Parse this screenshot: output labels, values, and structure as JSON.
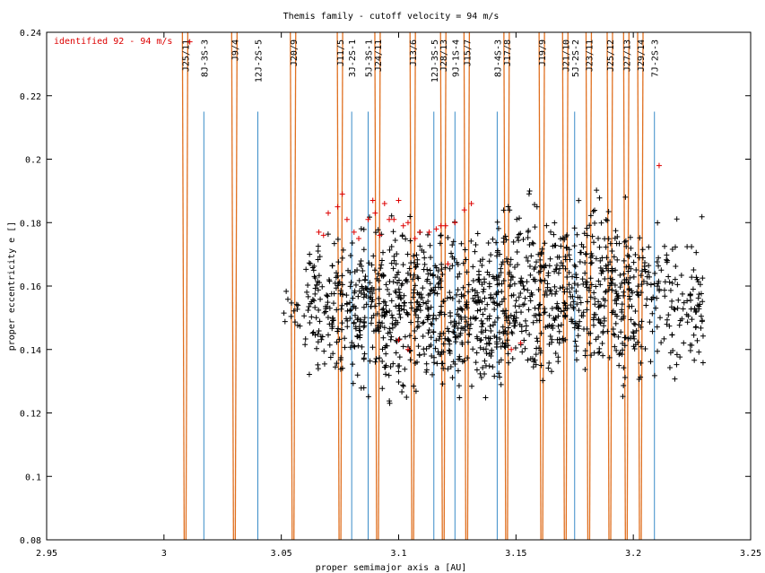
{
  "chart_data": {
    "type": "scatter",
    "title": "Themis family - cutoff velocity = 94 m/s",
    "xlabel": "proper semimajor axis a [AU]",
    "ylabel": "proper eccentricity e []",
    "xlim": [
      2.95,
      3.25
    ],
    "ylim": [
      0.08,
      0.24
    ],
    "xticks": [
      2.95,
      3,
      3.05,
      3.1,
      3.15,
      3.2,
      3.25
    ],
    "yticks": [
      0.08,
      0.1,
      0.12,
      0.14,
      0.16,
      0.18,
      0.2,
      0.22,
      0.24
    ],
    "xtick_labels": [
      "2.95",
      "3",
      "3.05",
      "3.1",
      "3.15",
      "3.2",
      "3.25"
    ],
    "ytick_labels": [
      "0.08",
      "0.1",
      "0.12",
      "0.14",
      "0.16",
      "0.18",
      "0.2",
      "0.22",
      "0.24"
    ],
    "grid": false,
    "legend": {
      "position": "top-left",
      "entries": [
        {
          "label": "identified 92 - 94 m/s",
          "color": "#dd0000"
        }
      ]
    },
    "colors": {
      "background_points": "#000000",
      "identified_points": "#dd0000",
      "resonance_boundary": "#e07020",
      "three_body_line": "#3a8cc8"
    },
    "resonances": [
      {
        "label": "J25/11",
        "a": 3.009,
        "type": "jupiter"
      },
      {
        "label": "8J-3S-3",
        "a": 3.017,
        "type": "three-body"
      },
      {
        "label": "J9/4",
        "a": 3.03,
        "type": "jupiter"
      },
      {
        "label": "12J-2S-5",
        "a": 3.04,
        "type": "three-body"
      },
      {
        "label": "J20/9",
        "a": 3.055,
        "type": "jupiter"
      },
      {
        "label": "J11/5",
        "a": 3.075,
        "type": "jupiter"
      },
      {
        "label": "3J-2S-1",
        "a": 3.08,
        "type": "three-body"
      },
      {
        "label": "5J-3S-1",
        "a": 3.087,
        "type": "three-body"
      },
      {
        "label": "J24/11",
        "a": 3.091,
        "type": "jupiter"
      },
      {
        "label": "J13/6",
        "a": 3.106,
        "type": "jupiter"
      },
      {
        "label": "12J-3S-5",
        "a": 3.115,
        "type": "three-body"
      },
      {
        "label": "J28/13",
        "a": 3.119,
        "type": "jupiter"
      },
      {
        "label": "9J-1S-4",
        "a": 3.124,
        "type": "three-body"
      },
      {
        "label": "J15/7",
        "a": 3.129,
        "type": "jupiter"
      },
      {
        "label": "8J-4S-3",
        "a": 3.142,
        "type": "three-body"
      },
      {
        "label": "J17/8",
        "a": 3.146,
        "type": "jupiter"
      },
      {
        "label": "J19/9",
        "a": 3.161,
        "type": "jupiter"
      },
      {
        "label": "J21/10",
        "a": 3.171,
        "type": "jupiter"
      },
      {
        "label": "5J-2S-2",
        "a": 3.175,
        "type": "three-body"
      },
      {
        "label": "J23/11",
        "a": 3.181,
        "type": "jupiter"
      },
      {
        "label": "J25/12",
        "a": 3.19,
        "type": "jupiter"
      },
      {
        "label": "J27/13",
        "a": 3.197,
        "type": "jupiter"
      },
      {
        "label": "J29/14",
        "a": 3.203,
        "type": "jupiter"
      },
      {
        "label": "7J-2S-3",
        "a": 3.209,
        "type": "three-body"
      }
    ],
    "identified_points": [
      {
        "x": 3.011,
        "y": 0.237
      },
      {
        "x": 3.066,
        "y": 0.177
      },
      {
        "x": 3.068,
        "y": 0.176
      },
      {
        "x": 3.07,
        "y": 0.183
      },
      {
        "x": 3.074,
        "y": 0.185
      },
      {
        "x": 3.076,
        "y": 0.189
      },
      {
        "x": 3.078,
        "y": 0.181
      },
      {
        "x": 3.081,
        "y": 0.177
      },
      {
        "x": 3.083,
        "y": 0.175
      },
      {
        "x": 3.087,
        "y": 0.181
      },
      {
        "x": 3.089,
        "y": 0.187
      },
      {
        "x": 3.09,
        "y": 0.183
      },
      {
        "x": 3.092,
        "y": 0.176
      },
      {
        "x": 3.094,
        "y": 0.186
      },
      {
        "x": 3.096,
        "y": 0.181
      },
      {
        "x": 3.098,
        "y": 0.181
      },
      {
        "x": 3.1,
        "y": 0.187
      },
      {
        "x": 3.102,
        "y": 0.179
      },
      {
        "x": 3.104,
        "y": 0.18
      },
      {
        "x": 3.107,
        "y": 0.175
      },
      {
        "x": 3.109,
        "y": 0.177
      },
      {
        "x": 3.113,
        "y": 0.177
      },
      {
        "x": 3.116,
        "y": 0.178
      },
      {
        "x": 3.118,
        "y": 0.179
      },
      {
        "x": 3.12,
        "y": 0.179
      },
      {
        "x": 3.124,
        "y": 0.18
      },
      {
        "x": 3.128,
        "y": 0.184
      },
      {
        "x": 3.131,
        "y": 0.186
      },
      {
        "x": 3.1,
        "y": 0.143
      },
      {
        "x": 3.104,
        "y": 0.14
      },
      {
        "x": 3.121,
        "y": 0.167
      },
      {
        "x": 3.148,
        "y": 0.14
      },
      {
        "x": 3.152,
        "y": 0.142
      },
      {
        "x": 3.211,
        "y": 0.198
      }
    ],
    "family_cloud": {
      "segments": [
        {
          "x": [
            3.05,
            3.06
          ],
          "y": [
            0.14,
            0.162
          ],
          "count": 14
        },
        {
          "x": [
            3.06,
            3.08
          ],
          "y": [
            0.125,
            0.182
          ],
          "count": 140
        },
        {
          "x": [
            3.08,
            3.11
          ],
          "y": [
            0.118,
            0.19
          ],
          "count": 300
        },
        {
          "x": [
            3.11,
            3.14
          ],
          "y": [
            0.115,
            0.185
          ],
          "count": 300
        },
        {
          "x": [
            3.14,
            3.17
          ],
          "y": [
            0.118,
            0.195
          ],
          "count": 300
        },
        {
          "x": [
            3.17,
            3.2
          ],
          "y": [
            0.12,
            0.198
          ],
          "count": 280
        },
        {
          "x": [
            3.2,
            3.23
          ],
          "y": [
            0.122,
            0.188
          ],
          "count": 170
        }
      ]
    }
  }
}
